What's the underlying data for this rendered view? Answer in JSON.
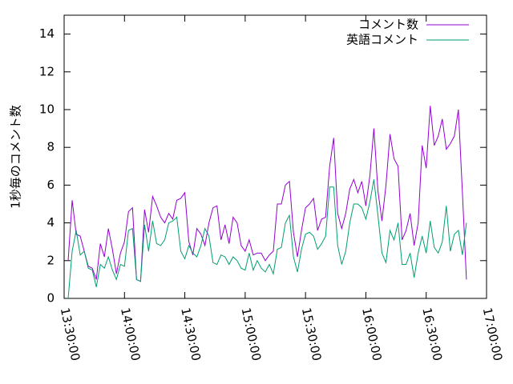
{
  "chart_data": {
    "type": "line",
    "y_label": "1秒毎のコメント数",
    "x": [
      "13:32:00",
      "13:34:00",
      "13:36:00",
      "13:38:00",
      "13:40:00",
      "13:42:00",
      "13:44:00",
      "13:46:00",
      "13:48:00",
      "13:50:00",
      "13:52:00",
      "13:54:00",
      "13:56:00",
      "13:58:00",
      "14:00:00",
      "14:02:00",
      "14:04:00",
      "14:06:00",
      "14:08:00",
      "14:10:00",
      "14:12:00",
      "14:14:00",
      "14:16:00",
      "14:18:00",
      "14:20:00",
      "14:22:00",
      "14:24:00",
      "14:26:00",
      "14:28:00",
      "14:30:00",
      "14:32:00",
      "14:34:00",
      "14:36:00",
      "14:38:00",
      "14:40:00",
      "14:42:00",
      "14:44:00",
      "14:46:00",
      "14:48:00",
      "14:50:00",
      "14:52:00",
      "14:54:00",
      "14:56:00",
      "14:58:00",
      "15:00:00",
      "15:02:00",
      "15:04:00",
      "15:06:00",
      "15:08:00",
      "15:10:00",
      "15:12:00",
      "15:14:00",
      "15:16:00",
      "15:18:00",
      "15:20:00",
      "15:22:00",
      "15:24:00",
      "15:26:00",
      "15:28:00",
      "15:30:00",
      "15:32:00",
      "15:34:00",
      "15:36:00",
      "15:38:00",
      "15:40:00",
      "15:42:00",
      "15:44:00",
      "15:46:00",
      "15:48:00",
      "15:50:00",
      "15:52:00",
      "15:54:00",
      "15:56:00",
      "15:58:00",
      "16:00:00",
      "16:02:00",
      "16:04:00",
      "16:06:00",
      "16:08:00",
      "16:10:00",
      "16:12:00",
      "16:14:00",
      "16:16:00",
      "16:18:00",
      "16:20:00",
      "16:22:00",
      "16:24:00",
      "16:26:00",
      "16:28:00",
      "16:30:00",
      "16:32:00",
      "16:34:00",
      "16:36:00",
      "16:38:00",
      "16:40:00",
      "16:42:00",
      "16:44:00",
      "16:46:00",
      "16:48:00",
      "16:50:00"
    ],
    "series": [
      {
        "name": "コメント数",
        "color": "#9400d3",
        "values": [
          2,
          5.2,
          3.4,
          3.3,
          2.5,
          1.7,
          1.6,
          1,
          2.9,
          2.2,
          3.7,
          2.6,
          1.3,
          2.4,
          3,
          4.6,
          4.8,
          1,
          0.9,
          4.7,
          3.5,
          5.4,
          4.9,
          4.3,
          4,
          4.5,
          4.2,
          5.2,
          5.3,
          5.6,
          3,
          2.3,
          3.7,
          3.4,
          2.8,
          4,
          4.8,
          4.9,
          3.1,
          3.9,
          2.9,
          4.3,
          4,
          2.8,
          2.5,
          3.1,
          2.3,
          2.4,
          2.4,
          2,
          2.3,
          2.5,
          5,
          5,
          6,
          6.2,
          3.5,
          2.2,
          3.6,
          4.8,
          5,
          5.3,
          3.6,
          4.2,
          4.3,
          7,
          8.5,
          4.5,
          3.7,
          4.5,
          5.8,
          6.3,
          5.6,
          6.2,
          4.9,
          6.5,
          9,
          5.7,
          4.1,
          6,
          8.7,
          7.4,
          7,
          3.1,
          3.6,
          4.5,
          2.8,
          4,
          8.1,
          6.9,
          10.2,
          8.1,
          8.6,
          9.5,
          7.9,
          8.2,
          8.6,
          10,
          5.6,
          1
        ]
      },
      {
        "name": "英語コメント",
        "color": "#009e73",
        "values": [
          0,
          2.5,
          3.6,
          2.3,
          2.5,
          1.6,
          1.5,
          0.6,
          1.8,
          1.6,
          2.2,
          1.5,
          1,
          1.8,
          1.7,
          3.6,
          3.7,
          1,
          0.9,
          3.9,
          2.5,
          4.1,
          2.9,
          2.8,
          3.1,
          4,
          4.1,
          4.3,
          2.5,
          2.1,
          2.8,
          2.4,
          2.2,
          2.8,
          3.7,
          3.3,
          1.9,
          1.8,
          2.3,
          2.2,
          1.8,
          2.2,
          2,
          1.6,
          1.5,
          2.4,
          1.5,
          2,
          1.6,
          1.4,
          1.8,
          1.3,
          2.6,
          2.7,
          4,
          4.4,
          2.2,
          1.4,
          2.6,
          3.4,
          3.5,
          3.3,
          2.6,
          2.9,
          3.3,
          5.9,
          5.9,
          2.8,
          1.8,
          2.5,
          4,
          5,
          5,
          4.8,
          4.2,
          5.1,
          6.3,
          4.4,
          2.4,
          1.9,
          3.6,
          3.1,
          4,
          1.8,
          1.8,
          2.4,
          1.1,
          2.4,
          3.3,
          2.4,
          4.1,
          2.7,
          2.4,
          3,
          4.9,
          2.5,
          3.4,
          3.6,
          2.3,
          4
        ]
      }
    ],
    "xlim": [
      "13:30:00",
      "17:00:00"
    ],
    "xticks": [
      "13:30:00",
      "14:00:00",
      "14:30:00",
      "15:00:00",
      "15:30:00",
      "16:00:00",
      "16:30:00",
      "17:00:00"
    ],
    "ylim": [
      0,
      15
    ],
    "yticks": [
      0,
      2,
      4,
      6,
      8,
      10,
      12,
      14
    ],
    "legend": "top-right"
  }
}
